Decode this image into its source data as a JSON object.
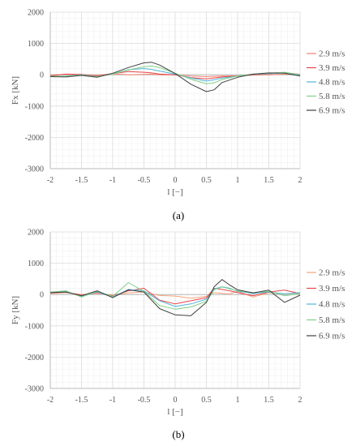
{
  "colors": {
    "grid_minor": "#f1f1f1",
    "grid_major": "#dddddd",
    "axis": "#bbbbbb"
  },
  "chart_data": [
    {
      "type": "line",
      "caption": "(a)",
      "ylabel": "Fx [kN]",
      "xlabel": "l [−]",
      "xlim": [
        -2,
        2
      ],
      "ylim": [
        -3000,
        2000
      ],
      "xticks": [
        "-2",
        "-1.5",
        "-1",
        "-0.5",
        "0",
        "0.5",
        "1",
        "1.5",
        "2"
      ],
      "yticks": [
        "2000",
        "1000",
        "0",
        "-1000",
        "-2000",
        "-3000"
      ],
      "grid": true,
      "legend_position": "right",
      "x": [
        -2.0,
        -1.75,
        -1.5,
        -1.25,
        -1.0,
        -0.75,
        -0.5,
        -0.375,
        -0.25,
        0.0,
        0.25,
        0.5,
        0.625,
        0.75,
        1.0,
        1.25,
        1.5,
        1.75,
        2.0
      ],
      "series": [
        {
          "name": "2.9 m/s",
          "color": "#f4876e",
          "values": [
            -10,
            10,
            0,
            -20,
            30,
            0,
            10,
            20,
            0,
            0,
            -40,
            -60,
            -50,
            -40,
            -30,
            -10,
            0,
            20,
            0
          ]
        },
        {
          "name": "3.9 m/s",
          "color": "#e8454c",
          "values": [
            -30,
            20,
            10,
            -40,
            40,
            100,
            80,
            60,
            20,
            0,
            -90,
            -130,
            -100,
            -70,
            -40,
            0,
            30,
            70,
            10
          ]
        },
        {
          "name": "4.8 m/s",
          "color": "#52b6d8",
          "values": [
            -50,
            -40,
            0,
            -60,
            30,
            160,
            200,
            170,
            120,
            20,
            -100,
            -200,
            -160,
            -100,
            -40,
            10,
            40,
            60,
            -20
          ]
        },
        {
          "name": "5.8 m/s",
          "color": "#7fcf85",
          "values": [
            -40,
            -50,
            -10,
            -60,
            30,
            150,
            260,
            280,
            230,
            50,
            -140,
            -290,
            -260,
            -150,
            -40,
            20,
            50,
            80,
            0
          ]
        },
        {
          "name": "6.9 m/s",
          "color": "#404040",
          "values": [
            -60,
            -70,
            -20,
            -80,
            50,
            230,
            380,
            400,
            310,
            40,
            -300,
            -540,
            -480,
            -250,
            -80,
            20,
            60,
            50,
            -40
          ]
        }
      ]
    },
    {
      "type": "line",
      "caption": "(b)",
      "ylabel": "Fy [kN]",
      "xlabel": "l [−]",
      "xlim": [
        -2,
        2
      ],
      "ylim": [
        -3000,
        2000
      ],
      "xticks": [
        "-2",
        "-1.5",
        "-1",
        "-0.5",
        "0",
        "0.5",
        "1",
        "1.5",
        "2"
      ],
      "yticks": [
        "2000",
        "1000",
        "0",
        "-1000",
        "-2000",
        "-3000"
      ],
      "grid": true,
      "legend_position": "right",
      "x": [
        -2.0,
        -1.75,
        -1.5,
        -1.25,
        -1.0,
        -0.75,
        -0.5,
        -0.25,
        0.0,
        0.25,
        0.5,
        0.625,
        0.75,
        0.875,
        1.0,
        1.25,
        1.5,
        1.75,
        2.0
      ],
      "series": [
        {
          "name": "2.9 m/s",
          "color": "#f4a47a",
          "values": [
            30,
            60,
            0,
            40,
            -20,
            50,
            80,
            -30,
            -50,
            -120,
            -60,
            60,
            40,
            20,
            100,
            -80,
            60,
            20,
            50
          ]
        },
        {
          "name": "3.9 m/s",
          "color": "#e8454c",
          "values": [
            50,
            80,
            -20,
            60,
            -40,
            120,
            200,
            -180,
            -300,
            -200,
            -100,
            200,
            160,
            120,
            60,
            -40,
            80,
            140,
            30
          ]
        },
        {
          "name": "4.8 m/s",
          "color": "#52b6d8",
          "values": [
            60,
            100,
            -60,
            80,
            -80,
            160,
            120,
            -200,
            -380,
            -300,
            -150,
            180,
            250,
            200,
            100,
            40,
            80,
            20,
            60
          ]
        },
        {
          "name": "5.8 m/s",
          "color": "#7fcf85",
          "values": [
            80,
            120,
            -80,
            100,
            -60,
            380,
            100,
            -350,
            -470,
            -400,
            -220,
            150,
            240,
            180,
            120,
            60,
            100,
            -40,
            30
          ]
        },
        {
          "name": "6.9 m/s",
          "color": "#404040",
          "values": [
            60,
            80,
            -40,
            120,
            -100,
            150,
            80,
            -450,
            -650,
            -680,
            -250,
            250,
            480,
            300,
            150,
            50,
            140,
            -250,
            -20
          ]
        }
      ]
    }
  ]
}
